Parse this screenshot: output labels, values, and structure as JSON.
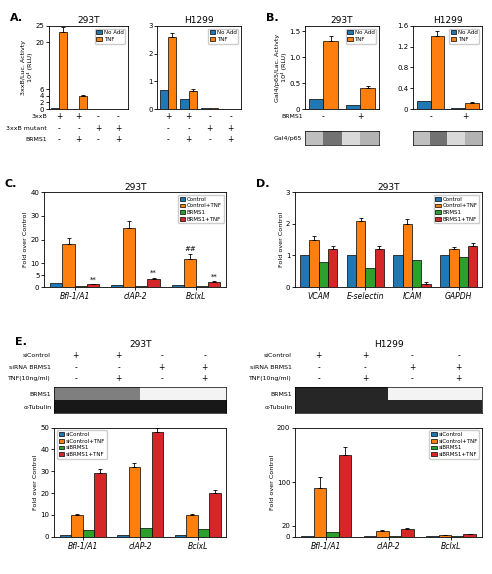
{
  "chart_data": [
    {
      "type": "bar",
      "panel": "A.",
      "title": "293T",
      "ylabel": "3xxB/Luc. Activty\n10⁴ (RLU)",
      "categories": [
        null,
        null,
        null,
        null
      ],
      "series": [
        {
          "name": "No Add",
          "values": [
            0.25,
            0.15,
            0.08,
            0.05
          ]
        },
        {
          "name": "TNF",
          "values": [
            23.0,
            4.0,
            0.1,
            0.05
          ],
          "errors": [
            1.5,
            0.3,
            0.0,
            0.0
          ]
        }
      ],
      "ylim": [
        0,
        25
      ],
      "yticks": [
        0,
        2,
        4,
        6,
        20,
        25
      ],
      "tick_labels": "y",
      "legend": "upper right",
      "condition_rows": [
        {
          "label": "3xxB",
          "values": [
            "+",
            "+",
            "-",
            "-"
          ]
        },
        {
          "label": "3xxB mutant",
          "values": [
            "-",
            "-",
            "+",
            "+"
          ]
        },
        {
          "label": "BRMS1",
          "values": [
            "-",
            "+",
            "-",
            "+"
          ]
        }
      ]
    },
    {
      "type": "bar",
      "title": "H1299",
      "categories": [
        null,
        null,
        null,
        null
      ],
      "series": [
        {
          "name": "No Add",
          "values": [
            0.7,
            0.35,
            0.04,
            0.02
          ]
        },
        {
          "name": "TNF",
          "values": [
            2.6,
            0.65,
            0.04,
            0.02
          ],
          "errors": [
            0.15,
            0.08,
            0.0,
            0.0
          ]
        }
      ],
      "ylim": [
        0,
        3
      ],
      "yticks": [
        0,
        1,
        2,
        3
      ],
      "tick_labels": "y",
      "legend": "upper right",
      "condition_rows": [
        {
          "values": [
            "+",
            "+",
            "-",
            "-"
          ]
        },
        {
          "values": [
            "-",
            "-",
            "+",
            "+"
          ]
        },
        {
          "values": [
            "-",
            "+",
            "-",
            "+"
          ]
        }
      ]
    },
    {
      "type": "bar",
      "panel": "B.",
      "title": "293T",
      "ylabel": "Gal4/p65/Lac. Activty\n10⁴ (RLU)",
      "categories": [
        null,
        null
      ],
      "series": [
        {
          "name": "No Add",
          "values": [
            0.2,
            0.07
          ]
        },
        {
          "name": "TNF",
          "values": [
            1.3,
            0.4
          ],
          "errors": [
            0.1,
            0.05
          ]
        }
      ],
      "ylim": [
        0,
        1.6
      ],
      "yticks": [
        0,
        0.5,
        {
          "value": 1.0,
          "label": "1.0"
        },
        1.5
      ],
      "tick_labels": "y",
      "legend": "upper right",
      "condition_rows": [
        {
          "label": "BRMS1",
          "values": [
            "-",
            "+"
          ]
        }
      ]
    },
    {
      "type": "bar",
      "title": "H1299",
      "categories": [
        null,
        null
      ],
      "series": [
        {
          "name": "No Add",
          "values": [
            0.15,
            0.02
          ]
        },
        {
          "name": "TNF",
          "values": [
            1.4,
            0.12
          ],
          "errors": [
            0.1,
            0.02
          ]
        }
      ],
      "ylim": [
        0,
        1.6
      ],
      "yticks": [
        0,
        0.4,
        0.8,
        1.2,
        1.6
      ],
      "tick_labels": "y",
      "legend": "upper right",
      "condition_rows": [
        {
          "values": [
            "-",
            "+"
          ]
        }
      ]
    },
    {
      "type": "heatmap",
      "rows": [
        "Gal4/p65"
      ],
      "cells": [
        [
          0.25,
          0.55,
          0.15,
          0.3
        ]
      ],
      "clim": [
        0,
        1
      ],
      "tick_labels": "y"
    },
    {
      "type": "heatmap",
      "cells": [
        [
          0.25,
          0.55,
          0.15,
          0.3
        ]
      ],
      "clim": [
        0,
        1
      ],
      "tick_labels": false
    },
    {
      "type": "bar",
      "panel": "C.",
      "title": "293T",
      "ylabel": "Fold over Control",
      "categories": [
        "Bfl-1/A1",
        "cIAP-2",
        "BclxL"
      ],
      "series": [
        {
          "name": "Control",
          "values": [
            1.5,
            1.0,
            0.8
          ]
        },
        {
          "name": "Control+TNF",
          "values": [
            18.0,
            25.0,
            12.0
          ],
          "errors": [
            2.5,
            3.0,
            2.0
          ]
        },
        {
          "name": "BRMS1",
          "values": [
            0.5,
            0.5,
            0.4
          ]
        },
        {
          "name": "BRMS1+TNF",
          "values": [
            1.1,
            3.5,
            2.2
          ],
          "errors": [
            0.3,
            0.5,
            0.3
          ]
        }
      ],
      "ylim": [
        0,
        40
      ],
      "yticks": [
        0,
        5,
        10,
        20,
        30,
        40
      ],
      "legend": "upper right",
      "annotations": [
        {
          "text": "**",
          "category": "Bfl-1/A1",
          "series": "BRMS1+TNF"
        },
        {
          "text": "**",
          "category": "cIAP-2",
          "series": "BRMS1+TNF"
        },
        {
          "text": "##",
          "category": "BclxL",
          "series": "Control+TNF"
        },
        {
          "text": "**",
          "category": "BclxL",
          "series": "BRMS1+TNF"
        }
      ]
    },
    {
      "type": "bar",
      "panel": "D.",
      "title": "293T",
      "ylabel": "Fold over Control",
      "categories": [
        "VCAM",
        "E-selectin",
        "ICAM",
        "GAPDH"
      ],
      "series": [
        {
          "name": "Control",
          "values": [
            1.0,
            1.0,
            1.0,
            1.0
          ]
        },
        {
          "name": "Control+TNF",
          "values": [
            1.5,
            2.1,
            2.0,
            1.2
          ],
          "errors": [
            0.1,
            0.1,
            0.15,
            0.08
          ]
        },
        {
          "name": "BRMS1",
          "values": [
            0.8,
            0.6,
            0.85,
            0.95
          ]
        },
        {
          "name": "BRMS1+TNF",
          "values": [
            1.2,
            1.2,
            0.1,
            1.3
          ],
          "errors": [
            0.1,
            0.1,
            0.05,
            0.1
          ]
        }
      ],
      "ylim": [
        0,
        3
      ],
      "yticks": [
        0,
        1,
        2,
        3
      ],
      "legend": "upper right"
    },
    {
      "type": "heatmap",
      "panel": "E.",
      "title": "293T",
      "condition_rows": [
        {
          "label": "siControl",
          "values": [
            "+",
            "+",
            "-",
            "-"
          ]
        },
        {
          "label": "siRNA BRMS1",
          "values": [
            "-",
            "-",
            "+",
            "+"
          ]
        },
        {
          "label": "TNF(10ng/ml)",
          "values": [
            "-",
            "+",
            "-",
            "+"
          ]
        }
      ],
      "rows": [
        "BRMS1",
        "α-Tubulin"
      ],
      "cells": [
        [
          0.5,
          0.5,
          0.05,
          0.05
        ],
        [
          0.9,
          0.9,
          0.9,
          0.9
        ]
      ],
      "clim": [
        0,
        1
      ],
      "tick_labels": "y"
    },
    {
      "type": "bar",
      "ylabel": "Fold over Control",
      "categories": [
        "Bfl-1/A1",
        "cIAP-2",
        "BclxL"
      ],
      "series": [
        {
          "name": "siControl",
          "values": [
            1.0,
            1.0,
            1.0
          ]
        },
        {
          "name": "siControl+TNF",
          "values": [
            10.0,
            32.0,
            10.0
          ],
          "errors": [
            0.5,
            2.0,
            0.5
          ]
        },
        {
          "name": "siBRMS1",
          "values": [
            3.0,
            4.0,
            3.5
          ]
        },
        {
          "name": "siBRMS1+TNF",
          "values": [
            29.0,
            48.0,
            20.0
          ],
          "errors": [
            2.0,
            2.0,
            1.5
          ]
        }
      ],
      "ylim": [
        0,
        50
      ],
      "yticks": [
        0,
        10,
        20,
        30,
        40,
        50
      ],
      "legend": "upper left"
    },
    {
      "type": "heatmap",
      "title": "H1299",
      "condition_rows": [
        {
          "label": "siControl",
          "values": [
            "+",
            "+",
            "-",
            "-"
          ]
        },
        {
          "label": "siRNA BRMS1",
          "values": [
            "-",
            "-",
            "+",
            "+"
          ]
        },
        {
          "label": "TNF(10ng/ml)",
          "values": [
            "-",
            "+",
            "-",
            "+"
          ]
        }
      ],
      "rows": [
        "BRMS1",
        "α-Tubulin"
      ],
      "cells": [
        [
          0.85,
          0.85,
          0.05,
          0.05
        ],
        [
          0.85,
          0.85,
          0.85,
          0.85
        ]
      ],
      "clim": [
        0,
        1
      ],
      "tick_labels": "y"
    },
    {
      "type": "bar",
      "ylabel": "Fold over Control",
      "categories": [
        "Bfl-1/A1",
        "cIAP-2",
        "BclxL"
      ],
      "series": [
        {
          "name": "siControl",
          "values": [
            1.0,
            1.0,
            1.0
          ]
        },
        {
          "name": "siControl+TNF",
          "values": [
            90.0,
            10.0,
            3.0
          ],
          "errors": [
            20.0,
            1.5,
            0.5
          ]
        },
        {
          "name": "siBRMS1",
          "values": [
            8.0,
            2.0,
            0.5
          ]
        },
        {
          "name": "siBRMS1+TNF",
          "values": [
            150.0,
            15.0,
            5.0
          ],
          "errors": [
            15.0,
            1.5,
            0.5
          ]
        }
      ],
      "ylim": [
        0,
        200
      ],
      "yticks": [
        0,
        20,
        100,
        200
      ],
      "legend": "upper right"
    }
  ]
}
